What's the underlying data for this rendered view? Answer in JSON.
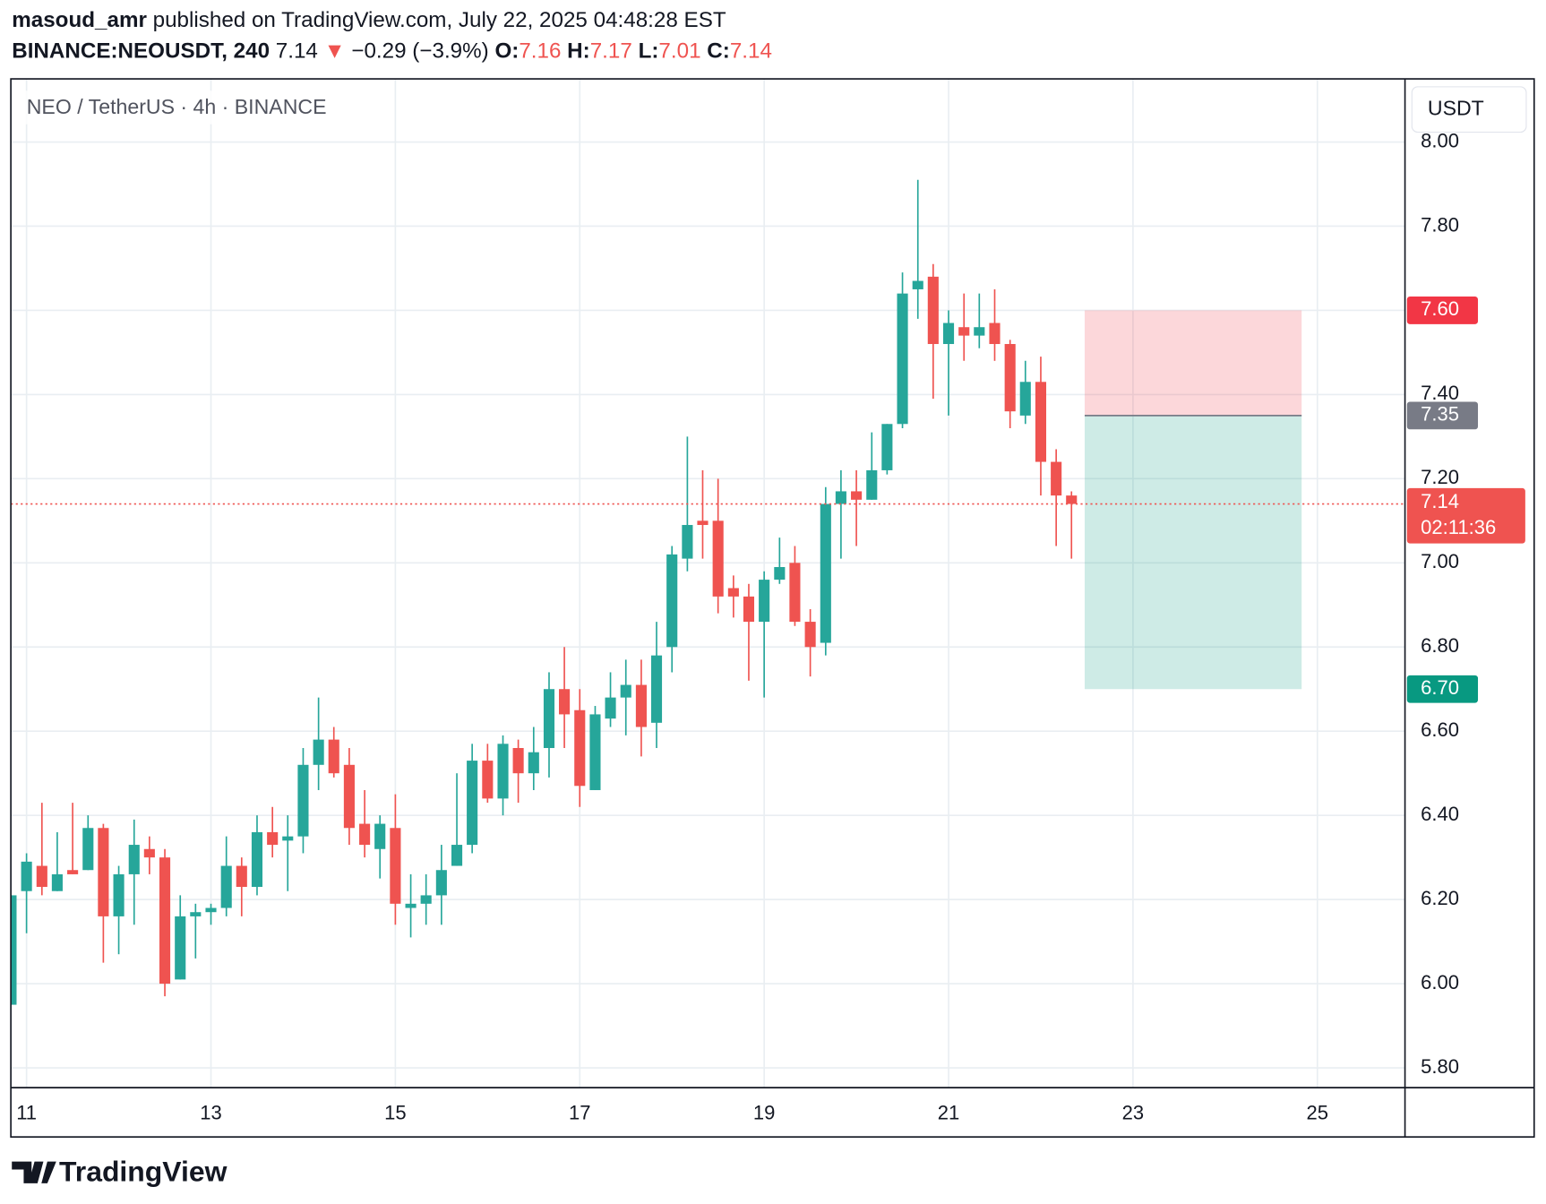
{
  "header": {
    "author": "masoud_amr",
    "published": "published on TradingView.com, July 22, 2025 04:48:28 EST",
    "symbol": "BINANCE:NEOUSDT, 240",
    "last": "7.14",
    "arrow": "▼",
    "change": "−0.29 (−3.9%)",
    "open_label": "O:",
    "open": "7.16",
    "high_label": "H:",
    "high": "7.17",
    "low_label": "L:",
    "low": "7.01",
    "close_label": "C:",
    "close": "7.14"
  },
  "footer": {
    "brand": "TradingView"
  },
  "chart_data": {
    "type": "candlestick",
    "title": "NEO / TetherUS · 4h · BINANCE",
    "currency": "USDT",
    "up_color": "#26a69a",
    "down_color": "#ef5350",
    "grid": true,
    "x": [
      10.833,
      11,
      11.167,
      11.333,
      11.5,
      11.667,
      11.833,
      12,
      12.167,
      12.333,
      12.5,
      12.667,
      12.833,
      13,
      13.167,
      13.333,
      13.5,
      13.667,
      13.833,
      14,
      14.167,
      14.333,
      14.5,
      14.667,
      14.833,
      15,
      15.167,
      15.333,
      15.5,
      15.667,
      15.833,
      16,
      16.167,
      16.333,
      16.5,
      16.667,
      16.833,
      17,
      17.167,
      17.333,
      17.5,
      17.667,
      17.833,
      18,
      18.167,
      18.333,
      18.5,
      18.667,
      18.833,
      19,
      19.167,
      19.333,
      19.5,
      19.667,
      19.833,
      20,
      20.167,
      20.333,
      20.5,
      20.667,
      20.833,
      21,
      21.167,
      21.333,
      21.5,
      21.667,
      21.833,
      22,
      22.167,
      22.333
    ],
    "open": [
      5.95,
      6.22,
      6.28,
      6.22,
      6.27,
      6.27,
      6.37,
      6.16,
      6.26,
      6.32,
      6.3,
      6.01,
      6.16,
      6.17,
      6.18,
      6.28,
      6.23,
      6.36,
      6.34,
      6.35,
      6.52,
      6.58,
      6.52,
      6.38,
      6.32,
      6.37,
      6.18,
      6.19,
      6.21,
      6.28,
      6.33,
      6.53,
      6.44,
      6.56,
      6.5,
      6.56,
      6.7,
      6.65,
      6.46,
      6.63,
      6.68,
      6.71,
      6.62,
      6.8,
      7.01,
      7.1,
      7.1,
      6.94,
      6.92,
      6.86,
      6.96,
      7.0,
      6.86,
      6.81,
      7.14,
      7.17,
      7.15,
      7.22,
      7.33,
      7.65,
      7.68,
      7.52,
      7.56,
      7.54,
      7.57,
      7.52,
      7.35,
      7.43,
      7.24,
      7.16
    ],
    "high": [
      6.21,
      6.31,
      6.43,
      6.36,
      6.43,
      6.4,
      6.38,
      6.28,
      6.39,
      6.35,
      6.32,
      6.21,
      6.19,
      6.19,
      6.35,
      6.3,
      6.4,
      6.42,
      6.4,
      6.56,
      6.68,
      6.61,
      6.56,
      6.46,
      6.4,
      6.45,
      6.26,
      6.26,
      6.33,
      6.5,
      6.57,
      6.57,
      6.59,
      6.58,
      6.61,
      6.74,
      6.8,
      6.7,
      6.66,
      6.74,
      6.77,
      6.77,
      6.86,
      7.04,
      7.3,
      7.22,
      7.2,
      6.97,
      6.95,
      6.98,
      7.06,
      7.04,
      6.89,
      7.18,
      7.22,
      7.22,
      7.31,
      7.33,
      7.69,
      7.91,
      7.71,
      7.6,
      7.64,
      7.64,
      7.65,
      7.53,
      7.48,
      7.49,
      7.27,
      7.17
    ],
    "low": [
      5.95,
      6.12,
      6.21,
      6.22,
      6.26,
      6.27,
      6.05,
      6.07,
      6.14,
      6.26,
      5.97,
      6.01,
      6.06,
      6.14,
      6.16,
      6.16,
      6.21,
      6.3,
      6.22,
      6.31,
      6.46,
      6.49,
      6.33,
      6.3,
      6.25,
      6.14,
      6.11,
      6.14,
      6.14,
      6.28,
      6.31,
      6.43,
      6.4,
      6.43,
      6.46,
      6.49,
      6.56,
      6.42,
      6.46,
      6.61,
      6.59,
      6.54,
      6.56,
      6.74,
      6.98,
      7.01,
      6.88,
      6.87,
      6.72,
      6.68,
      6.95,
      6.85,
      6.73,
      6.78,
      7.01,
      7.04,
      7.15,
      7.21,
      7.32,
      7.58,
      7.39,
      7.35,
      7.48,
      7.51,
      7.48,
      7.32,
      7.33,
      7.16,
      7.04,
      7.01
    ],
    "close": [
      6.21,
      6.29,
      6.23,
      6.26,
      6.26,
      6.37,
      6.16,
      6.26,
      6.33,
      6.3,
      6.0,
      6.16,
      6.17,
      6.18,
      6.28,
      6.23,
      6.36,
      6.33,
      6.35,
      6.52,
      6.58,
      6.5,
      6.37,
      6.33,
      6.38,
      6.19,
      6.19,
      6.21,
      6.27,
      6.33,
      6.53,
      6.44,
      6.57,
      6.5,
      6.55,
      6.7,
      6.64,
      6.47,
      6.64,
      6.68,
      6.71,
      6.61,
      6.78,
      7.02,
      7.09,
      7.09,
      6.92,
      6.92,
      6.86,
      6.96,
      6.99,
      6.86,
      6.8,
      7.14,
      7.17,
      7.15,
      7.22,
      7.33,
      7.64,
      7.67,
      7.52,
      7.57,
      7.54,
      7.56,
      7.52,
      7.36,
      7.43,
      7.24,
      7.16,
      7.14
    ],
    "xlim": [
      10.83,
      25.95
    ],
    "ylim": [
      5.753,
      8.15
    ],
    "xticks": [
      11,
      13,
      15,
      17,
      19,
      21,
      23,
      25
    ],
    "yticks": [
      {
        "value": 5.8,
        "label": "5.80"
      },
      {
        "value": 6,
        "label": "6.00"
      },
      {
        "value": 6.2,
        "label": "6.20"
      },
      {
        "value": 6.4,
        "label": "6.40"
      },
      {
        "value": 6.6,
        "label": "6.60"
      },
      {
        "value": 6.8,
        "label": "6.80"
      },
      {
        "value": 7,
        "label": "7.00"
      },
      {
        "value": 7.2,
        "label": "7.20"
      },
      {
        "value": 7.4,
        "label": "7.40"
      },
      {
        "value": 7.6,
        "label": "7.60"
      },
      {
        "value": 7.8,
        "label": "7.80"
      },
      {
        "value": 8,
        "label": "8.00"
      }
    ],
    "position": {
      "x_start": 22.476,
      "x_end": 24.829,
      "stop": 7.6,
      "stop_label": "7.60",
      "entry": 7.35,
      "entry_label": "7.35",
      "target": 6.7,
      "target_label": "6.70"
    },
    "last_price": {
      "value": 7.14,
      "label": "7.14",
      "countdown": "02:11:36"
    }
  }
}
